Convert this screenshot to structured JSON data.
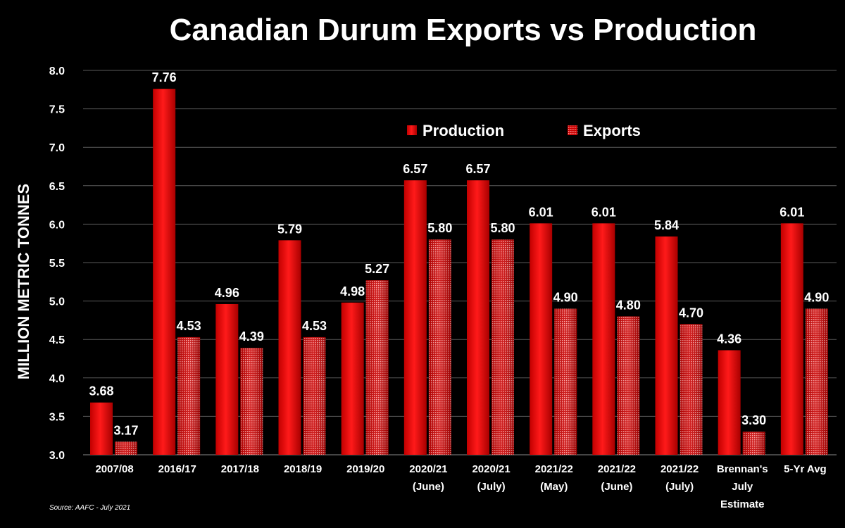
{
  "chart_data": {
    "type": "bar",
    "title": "Canadian Durum Exports vs Production",
    "ylabel": "MILLION METRIC TONNES",
    "xlabel": "",
    "ylim": [
      3.0,
      8.0
    ],
    "yticks": [
      "3.0",
      "3.5",
      "4.0",
      "4.5",
      "5.0",
      "5.5",
      "6.0",
      "6.5",
      "7.0",
      "7.5",
      "8.0"
    ],
    "grid": true,
    "legend_position": "top-right",
    "categories": [
      [
        "2007/08"
      ],
      [
        "2016/17"
      ],
      [
        "2017/18"
      ],
      [
        "2018/19"
      ],
      [
        "2019/20"
      ],
      [
        "2020/21",
        "(June)"
      ],
      [
        "2020/21",
        "(July)"
      ],
      [
        "2021/22",
        "(May)"
      ],
      [
        "2021/22",
        "(June)"
      ],
      [
        "2021/22",
        "(July)"
      ],
      [
        "Brennan's",
        "July",
        "Estimate"
      ],
      [
        "5-Yr Avg"
      ]
    ],
    "series": [
      {
        "name": "Production",
        "color": "#e00000",
        "pattern": "solid",
        "values": [
          3.68,
          7.76,
          4.96,
          5.79,
          4.98,
          6.57,
          6.57,
          6.01,
          6.01,
          5.84,
          4.36,
          6.01
        ],
        "labels": [
          "3.68",
          "7.76",
          "4.96",
          "5.79",
          "4.98",
          "6.57",
          "6.57",
          "6.01",
          "6.01",
          "5.84",
          "4.36",
          "6.01"
        ]
      },
      {
        "name": "Exports",
        "color": "#e00000",
        "pattern": "dotted",
        "values": [
          3.17,
          4.53,
          4.39,
          4.53,
          5.27,
          5.8,
          5.8,
          4.9,
          4.8,
          4.7,
          3.3,
          4.9
        ],
        "labels": [
          "3.17",
          "4.53",
          "4.39",
          "4.53",
          "5.27",
          "5.80",
          "5.80",
          "4.90",
          "4.80",
          "4.70",
          "3.30",
          "4.90"
        ]
      }
    ]
  },
  "source_note": "Source: AAFC - July 2021"
}
